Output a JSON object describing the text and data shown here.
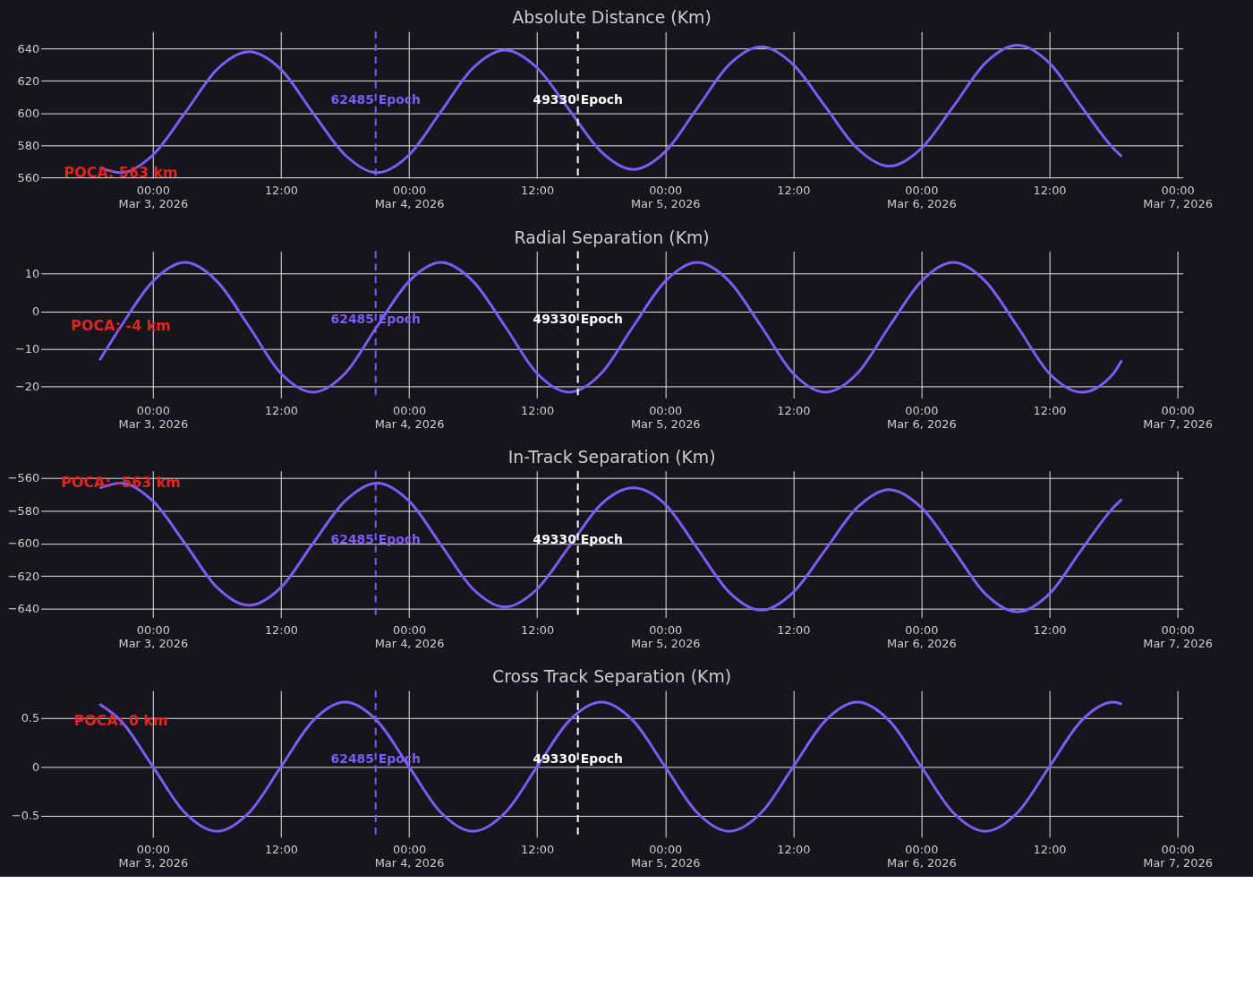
{
  "chart_data": [
    {
      "type": "line",
      "title": "Absolute Distance (Km)",
      "grid": true,
      "x": [
        "2026-03-02T19:00",
        "2026-03-02T21:00",
        "2026-03-03T00:00",
        "2026-03-03T03:00",
        "2026-03-03T06:00",
        "2026-03-03T09:00",
        "2026-03-03T12:00",
        "2026-03-03T15:00",
        "2026-03-03T18:00",
        "2026-03-03T21:00",
        "2026-03-04T00:00",
        "2026-03-04T03:00",
        "2026-03-04T06:00",
        "2026-03-04T09:00",
        "2026-03-04T12:00",
        "2026-03-04T15:00",
        "2026-03-04T18:00",
        "2026-03-04T21:00",
        "2026-03-05T00:00",
        "2026-03-05T03:00",
        "2026-03-05T06:00",
        "2026-03-05T09:00",
        "2026-03-05T12:00",
        "2026-03-05T15:00",
        "2026-03-05T18:00",
        "2026-03-05T21:00",
        "2026-03-06T00:00",
        "2026-03-06T03:00",
        "2026-03-06T06:00",
        "2026-03-06T09:00",
        "2026-03-06T12:00",
        "2026-03-06T15:00",
        "2026-03-06T18:00",
        "2026-03-06T18:47"
      ],
      "series": [
        {
          "color": "#7b5cf5",
          "values": [
            566,
            563,
            574,
            600,
            627,
            638,
            627,
            600,
            574,
            563,
            574,
            601,
            628,
            639,
            628,
            602,
            576,
            565,
            576,
            603,
            630,
            641,
            630,
            604,
            578,
            567,
            578,
            604,
            631,
            642,
            631,
            604,
            578,
            573
          ]
        }
      ],
      "xlim": [
        "2026-03-02T13:30",
        "2026-03-07T00:30"
      ],
      "xticks": [
        {
          "value": "2026-03-03T00:00",
          "label": "00:00\nMar 3, 2026"
        },
        {
          "value": "2026-03-03T12:00",
          "label": "12:00"
        },
        {
          "value": "2026-03-04T00:00",
          "label": "00:00\nMar 4, 2026"
        },
        {
          "value": "2026-03-04T12:00",
          "label": "12:00"
        },
        {
          "value": "2026-03-05T00:00",
          "label": "00:00\nMar 5, 2026"
        },
        {
          "value": "2026-03-05T12:00",
          "label": "12:00"
        },
        {
          "value": "2026-03-06T00:00",
          "label": "00:00\nMar 6, 2026"
        },
        {
          "value": "2026-03-06T12:00",
          "label": "12:00"
        },
        {
          "value": "2026-03-07T00:00",
          "label": "00:00\nMar 7, 2026"
        }
      ],
      "ylim": [
        559.5,
        650.5
      ],
      "yticks": [
        560,
        580,
        600,
        620,
        640
      ],
      "ref_lines": [
        {
          "axis": "x",
          "value": "2026-03-03T20:52",
          "label": "62485 Epoch",
          "color": "#7b5cf5",
          "line_style": "dashed"
        },
        {
          "axis": "x",
          "value": "2026-03-04T15:49",
          "label": "49330 Epoch",
          "color": "#ffffff",
          "line_style": "dashed"
        }
      ],
      "annotations": [
        {
          "text": "POCA: 563 km",
          "x": "2026-03-02T21:00",
          "y": 563
        }
      ]
    },
    {
      "type": "line",
      "title": "Radial Separation (Km)",
      "grid": true,
      "x": [
        "2026-03-02T19:00",
        "2026-03-02T21:00",
        "2026-03-03T00:00",
        "2026-03-03T03:00",
        "2026-03-03T06:00",
        "2026-03-03T09:00",
        "2026-03-03T12:00",
        "2026-03-03T15:00",
        "2026-03-03T18:00",
        "2026-03-03T21:00",
        "2026-03-04T00:00",
        "2026-03-04T03:00",
        "2026-03-04T06:00",
        "2026-03-04T09:00",
        "2026-03-04T12:00",
        "2026-03-04T15:00",
        "2026-03-04T18:00",
        "2026-03-04T21:00",
        "2026-03-05T00:00",
        "2026-03-05T03:00",
        "2026-03-05T06:00",
        "2026-03-05T09:00",
        "2026-03-05T12:00",
        "2026-03-05T15:00",
        "2026-03-05T18:00",
        "2026-03-05T21:00",
        "2026-03-06T00:00",
        "2026-03-06T03:00",
        "2026-03-06T06:00",
        "2026-03-06T09:00",
        "2026-03-06T12:00",
        "2026-03-06T15:00",
        "2026-03-06T18:00",
        "2026-03-06T18:47"
      ],
      "series": [
        {
          "color": "#7b5cf5",
          "values": [
            -13,
            -4,
            8,
            13,
            8,
            -4,
            -16.5,
            -21.5,
            -16.5,
            -4,
            8,
            13,
            8,
            -4,
            -16.5,
            -21.5,
            -16.5,
            -4,
            8,
            13,
            8,
            -4,
            -16.5,
            -21.5,
            -16.5,
            -4,
            8,
            13,
            8,
            -4,
            -16.5,
            -21.5,
            -16.5,
            -13
          ]
        }
      ],
      "xlim": [
        "2026-03-02T13:30",
        "2026-03-07T00:30"
      ],
      "xticks": [
        {
          "value": "2026-03-03T00:00",
          "label": "00:00\nMar 3, 2026"
        },
        {
          "value": "2026-03-03T12:00",
          "label": "12:00"
        },
        {
          "value": "2026-03-04T00:00",
          "label": "00:00\nMar 4, 2026"
        },
        {
          "value": "2026-03-04T12:00",
          "label": "12:00"
        },
        {
          "value": "2026-03-05T00:00",
          "label": "00:00\nMar 5, 2026"
        },
        {
          "value": "2026-03-05T12:00",
          "label": "12:00"
        },
        {
          "value": "2026-03-06T00:00",
          "label": "00:00\nMar 6, 2026"
        },
        {
          "value": "2026-03-06T12:00",
          "label": "12:00"
        },
        {
          "value": "2026-03-07T00:00",
          "label": "00:00\nMar 7, 2026"
        }
      ],
      "ylim": [
        -23,
        16
      ],
      "yticks": [
        -20,
        -10,
        0,
        10
      ],
      "ref_lines": [
        {
          "axis": "x",
          "value": "2026-03-03T20:52",
          "label": "62485 Epoch",
          "color": "#7b5cf5",
          "line_style": "dashed"
        },
        {
          "axis": "x",
          "value": "2026-03-04T15:49",
          "label": "49330 Epoch",
          "color": "#ffffff",
          "line_style": "dashed"
        }
      ],
      "annotations": [
        {
          "text": "POCA: -4 km",
          "x": "2026-03-02T21:00",
          "y": -4
        }
      ]
    },
    {
      "type": "line",
      "title": "In-Track Separation (Km)",
      "grid": true,
      "x": [
        "2026-03-02T19:00",
        "2026-03-02T21:00",
        "2026-03-03T00:00",
        "2026-03-03T03:00",
        "2026-03-03T06:00",
        "2026-03-03T09:00",
        "2026-03-03T12:00",
        "2026-03-03T15:00",
        "2026-03-03T18:00",
        "2026-03-03T21:00",
        "2026-03-04T00:00",
        "2026-03-04T03:00",
        "2026-03-04T06:00",
        "2026-03-04T09:00",
        "2026-03-04T12:00",
        "2026-03-04T15:00",
        "2026-03-04T18:00",
        "2026-03-04T21:00",
        "2026-03-05T00:00",
        "2026-03-05T03:00",
        "2026-03-05T06:00",
        "2026-03-05T09:00",
        "2026-03-05T12:00",
        "2026-03-05T15:00",
        "2026-03-05T18:00",
        "2026-03-05T21:00",
        "2026-03-06T00:00",
        "2026-03-06T03:00",
        "2026-03-06T06:00",
        "2026-03-06T09:00",
        "2026-03-06T12:00",
        "2026-03-06T15:00",
        "2026-03-06T18:00",
        "2026-03-06T18:47"
      ],
      "series": [
        {
          "color": "#7b5cf5",
          "values": [
            -566,
            -563,
            -574,
            -600,
            -627,
            -638,
            -627,
            -600,
            -574,
            -563,
            -574,
            -601,
            -628,
            -639,
            -628,
            -602,
            -576,
            -566,
            -576,
            -603,
            -630,
            -641,
            -630,
            -604,
            -578,
            -567,
            -578,
            -604,
            -631,
            -642,
            -631,
            -604,
            -578,
            -573
          ]
        }
      ],
      "xlim": [
        "2026-03-02T13:30",
        "2026-03-07T00:30"
      ],
      "xticks": [
        {
          "value": "2026-03-03T00:00",
          "label": "00:00\nMar 3, 2026"
        },
        {
          "value": "2026-03-03T12:00",
          "label": "12:00"
        },
        {
          "value": "2026-03-04T00:00",
          "label": "00:00\nMar 4, 2026"
        },
        {
          "value": "2026-03-04T12:00",
          "label": "12:00"
        },
        {
          "value": "2026-03-05T00:00",
          "label": "00:00\nMar 5, 2026"
        },
        {
          "value": "2026-03-05T12:00",
          "label": "12:00"
        },
        {
          "value": "2026-03-06T00:00",
          "label": "00:00\nMar 6, 2026"
        },
        {
          "value": "2026-03-06T12:00",
          "label": "12:00"
        },
        {
          "value": "2026-03-07T00:00",
          "label": "00:00\nMar 7, 2026"
        }
      ],
      "ylim": [
        -645.5,
        -555.5
      ],
      "yticks": [
        -640,
        -620,
        -600,
        -580,
        -560
      ],
      "ref_lines": [
        {
          "axis": "x",
          "value": "2026-03-03T20:52",
          "label": "62485 Epoch",
          "color": "#7b5cf5",
          "line_style": "dashed"
        },
        {
          "axis": "x",
          "value": "2026-03-04T15:49",
          "label": "49330 Epoch",
          "color": "#ffffff",
          "line_style": "dashed"
        }
      ],
      "annotations": [
        {
          "text": "POCA: -563 km",
          "x": "2026-03-02T21:00",
          "y": -563
        }
      ]
    },
    {
      "type": "line",
      "title": "Cross Track Separation (Km)",
      "grid": true,
      "x": [
        "2026-03-02T19:00",
        "2026-03-02T21:00",
        "2026-03-03T00:00",
        "2026-03-03T03:00",
        "2026-03-03T06:00",
        "2026-03-03T09:00",
        "2026-03-03T12:00",
        "2026-03-03T15:00",
        "2026-03-03T18:00",
        "2026-03-03T21:00",
        "2026-03-04T00:00",
        "2026-03-04T03:00",
        "2026-03-04T06:00",
        "2026-03-04T09:00",
        "2026-03-04T12:00",
        "2026-03-04T15:00",
        "2026-03-04T18:00",
        "2026-03-04T21:00",
        "2026-03-05T00:00",
        "2026-03-05T03:00",
        "2026-03-05T06:00",
        "2026-03-05T09:00",
        "2026-03-05T12:00",
        "2026-03-05T15:00",
        "2026-03-05T18:00",
        "2026-03-05T21:00",
        "2026-03-06T00:00",
        "2026-03-06T03:00",
        "2026-03-06T06:00",
        "2026-03-06T09:00",
        "2026-03-06T12:00",
        "2026-03-06T15:00",
        "2026-03-06T18:00",
        "2026-03-06T18:47"
      ],
      "series": [
        {
          "color": "#7b5cf5",
          "values": [
            0.64,
            0.47,
            0,
            -0.47,
            -0.66,
            -0.47,
            0,
            0.47,
            0.66,
            0.47,
            0,
            -0.47,
            -0.66,
            -0.47,
            0,
            0.47,
            0.66,
            0.47,
            0,
            -0.47,
            -0.66,
            -0.47,
            0,
            0.47,
            0.66,
            0.47,
            0,
            -0.47,
            -0.66,
            -0.47,
            0,
            0.47,
            0.66,
            0.64
          ]
        }
      ],
      "xlim": [
        "2026-03-02T13:30",
        "2026-03-07T00:30"
      ],
      "xticks": [
        {
          "value": "2026-03-03T00:00",
          "label": "00:00\nMar 3, 2026"
        },
        {
          "value": "2026-03-03T12:00",
          "label": "12:00"
        },
        {
          "value": "2026-03-04T00:00",
          "label": "00:00\nMar 4, 2026"
        },
        {
          "value": "2026-03-04T12:00",
          "label": "12:00"
        },
        {
          "value": "2026-03-05T00:00",
          "label": "00:00\nMar 5, 2026"
        },
        {
          "value": "2026-03-05T12:00",
          "label": "12:00"
        },
        {
          "value": "2026-03-06T00:00",
          "label": "00:00\nMar 6, 2026"
        },
        {
          "value": "2026-03-06T12:00",
          "label": "12:00"
        },
        {
          "value": "2026-03-07T00:00",
          "label": "00:00\nMar 7, 2026"
        }
      ],
      "ylim": [
        -0.72,
        0.78
      ],
      "yticks": [
        -0.5,
        0,
        0.5
      ],
      "ref_lines": [
        {
          "axis": "x",
          "value": "2026-03-03T20:52",
          "label": "62485 Epoch",
          "color": "#7b5cf5",
          "line_style": "dashed"
        },
        {
          "axis": "x",
          "value": "2026-03-04T15:49",
          "label": "49330 Epoch",
          "color": "#ffffff",
          "line_style": "dashed"
        }
      ],
      "annotations": [
        {
          "text": "POCA: 0 km",
          "x": "2026-03-02T21:00",
          "y": 0.47
        }
      ]
    }
  ]
}
